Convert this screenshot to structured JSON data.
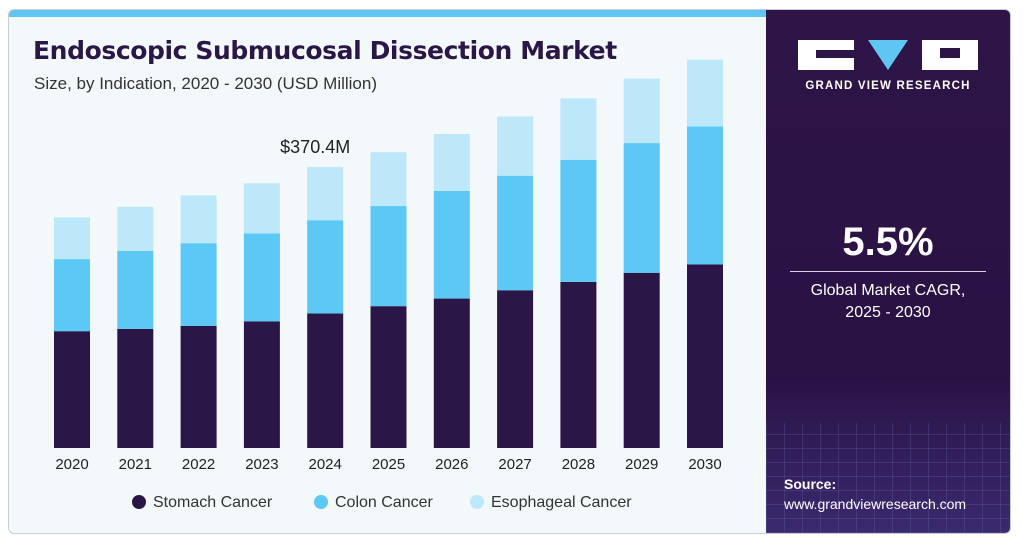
{
  "header": {
    "title": "Endoscopic Submucosal Dissection Market",
    "subtitle": "Size, by Indication, 2020 - 2030 (USD Million)"
  },
  "sidebar": {
    "logo_text": "GRAND VIEW RESEARCH",
    "cagr_value": "5.5%",
    "cagr_label_line1": "Global Market CAGR,",
    "cagr_label_line2": "2025 - 2030",
    "source_label": "Source:",
    "source_url": "www.grandviewresearch.com"
  },
  "colors": {
    "stomach": "#2b1747",
    "colon": "#5bc8f5",
    "esophageal": "#bde8fa",
    "accent": "#5fc6f3",
    "sidebar_bg": "#2e1447"
  },
  "chart_data": {
    "type": "bar",
    "stacked": true,
    "categories": [
      "2020",
      "2021",
      "2022",
      "2023",
      "2024",
      "2025",
      "2026",
      "2027",
      "2028",
      "2029",
      "2030"
    ],
    "series": [
      {
        "name": "Stomach Cancer",
        "values": [
          154.0,
          157.0,
          161.0,
          167.0,
          177.3,
          187.0,
          197.0,
          208.0,
          219.0,
          231.0,
          242.0
        ]
      },
      {
        "name": "Colon Cancer",
        "values": [
          95.0,
          103.0,
          109.0,
          116.0,
          123.0,
          132.0,
          142.0,
          151.0,
          161.0,
          171.0,
          182.0
        ]
      },
      {
        "name": "Esophageal Cancer",
        "values": [
          55.0,
          58.0,
          63.0,
          66.0,
          70.1,
          71.0,
          75.0,
          78.0,
          81.0,
          85.0,
          88.0
        ]
      }
    ],
    "annotations": [
      {
        "category": "2024",
        "text": "$370.4M"
      }
    ],
    "legend": "bottom",
    "grid": false
  }
}
